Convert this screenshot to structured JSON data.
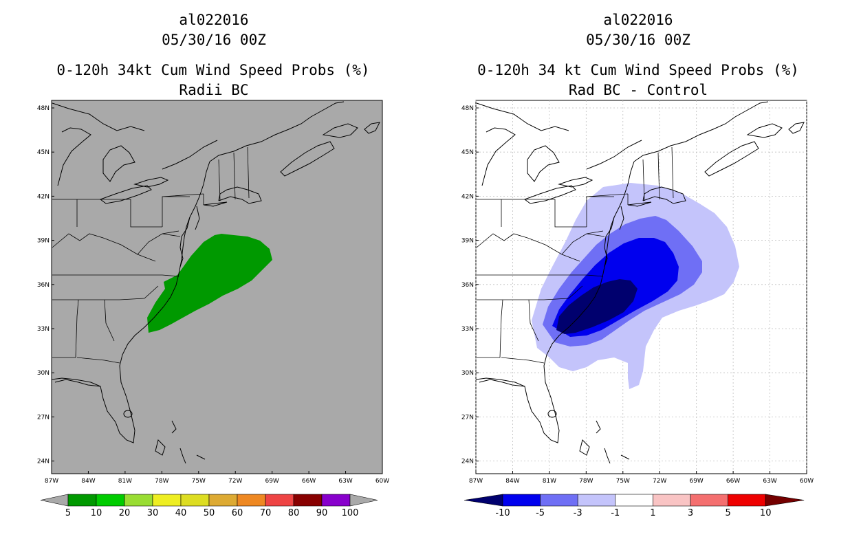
{
  "left": {
    "storm_id": "al022016",
    "datetime": "05/30/16 00Z",
    "product": "0-120h 34kt Cum Wind Speed Probs (%)",
    "subtitle": "Radii BC",
    "background": "#a9a9a9",
    "colorbar": {
      "labels": [
        "5",
        "10",
        "20",
        "30",
        "40",
        "50",
        "60",
        "70",
        "80",
        "90",
        "100"
      ],
      "colors": [
        "#009900",
        "#00cc00",
        "#99dd33",
        "#eeee22",
        "#dddd22",
        "#ddaa33",
        "#ee8822",
        "#ee4444",
        "#880000",
        "#8800cc"
      ]
    }
  },
  "right": {
    "storm_id": "al022016",
    "datetime": "05/30/16 00Z",
    "product": "0-120h 34 kt Cum Wind Speed Probs (%)",
    "subtitle": "Rad BC - Control",
    "background": "#ffffff",
    "colorbar": {
      "labels": [
        "-10",
        "-5",
        "-3",
        "-1",
        "1",
        "3",
        "5",
        "10"
      ],
      "colors": [
        "#00006e",
        "#0000ee",
        "#6f6ff5",
        "#c4c4fb",
        "#ffffff",
        "#f9c4c4",
        "#f46f6f",
        "#ee0000",
        "#750000"
      ]
    }
  },
  "axes": {
    "lat_labels": [
      "48N",
      "45N",
      "42N",
      "39N",
      "36N",
      "33N",
      "30N",
      "27N",
      "24N"
    ],
    "lon_labels": [
      "87W",
      "84W",
      "81W",
      "78W",
      "75W",
      "72W",
      "69W",
      "66W",
      "63W",
      "60W"
    ]
  }
}
